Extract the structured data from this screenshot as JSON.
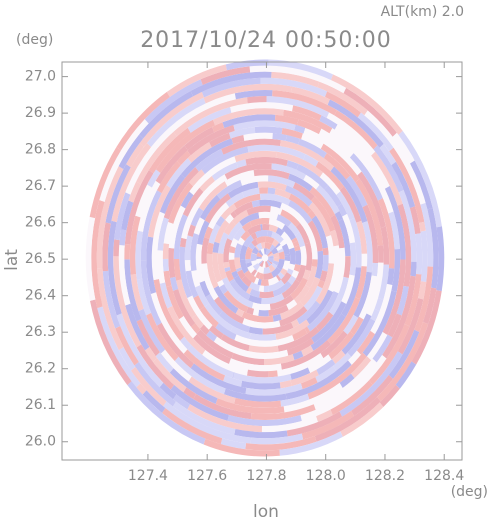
{
  "chart_data": {
    "type": "ppi",
    "title": "2017/10/24 00:50:00",
    "subtitle": "ALT(km) 2.0",
    "y_unit": "(deg)",
    "x_unit": "(deg)",
    "y_label": "lat",
    "x_label": "lon",
    "xlim": [
      127.11,
      128.46
    ],
    "ylim": [
      25.95,
      27.04
    ],
    "xticks": [
      127.4,
      127.6,
      127.8,
      {
        "value": 128,
        "label": "128.0"
      },
      128.2,
      128.4
    ],
    "yticks": [
      {
        "value": 26,
        "label": "26.0"
      },
      26.1,
      26.2,
      26.3,
      26.4,
      26.5,
      26.6,
      26.7,
      26.8,
      26.9,
      {
        "value": 27,
        "label": "27.0"
      }
    ]
  }
}
